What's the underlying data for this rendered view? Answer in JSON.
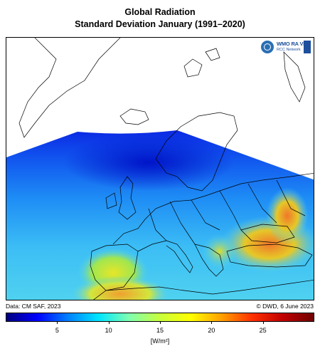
{
  "title": {
    "line1": "Global Radiation",
    "line2": "Standard Deviation January (1991–2020)"
  },
  "logo": {
    "text1": "WMO RA VI",
    "text2": "RCC Network"
  },
  "credits": {
    "left": "Data: CM SAF, 2023",
    "right": "© DWD, 6 June 2023"
  },
  "colorbar": {
    "min": 0,
    "max": 30,
    "ticks": [
      "5",
      "10",
      "15",
      "20",
      "25"
    ],
    "tick_values": [
      5,
      10,
      15,
      20,
      25
    ],
    "unit": "[W/m²]",
    "colors": [
      "#00007f",
      "#0000ff",
      "#0080ff",
      "#00e5ff",
      "#80ffb0",
      "#c8ff3c",
      "#ffff00",
      "#ffa000",
      "#ff3000",
      "#c00000",
      "#700000"
    ]
  },
  "map": {
    "background": "#ffffff",
    "no_data_color": "#ffffff",
    "dominant_colors": {
      "north": "#0a1ee0",
      "central": "#1e78f0",
      "south": "#3cb4f5",
      "iberia": "#dcdc28",
      "turkey": "#f08c28",
      "north_africa": "#f0b432"
    }
  }
}
